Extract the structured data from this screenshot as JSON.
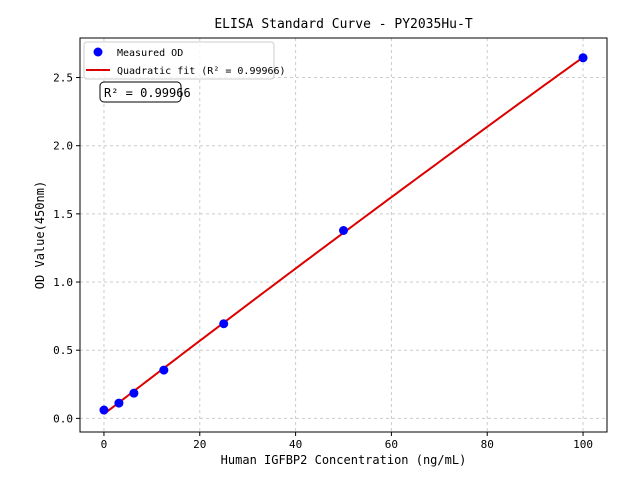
{
  "chart_data": {
    "type": "scatter",
    "title": "ELISA Standard Curve - PY2035Hu-T",
    "xlabel": "Human IGFBP2 Concentration (ng/mL)",
    "ylabel": "OD Value(450nm)",
    "xlim": [
      -5,
      105
    ],
    "ylim": [
      -0.1,
      2.79
    ],
    "xticks": [
      0,
      20,
      40,
      60,
      80,
      100
    ],
    "yticks": [
      0.0,
      0.5,
      1.0,
      1.5,
      2.0,
      2.5
    ],
    "xtick_labels": [
      "0",
      "20",
      "40",
      "60",
      "80",
      "100"
    ],
    "ytick_labels": [
      "0.0",
      "0.5",
      "1.0",
      "1.5",
      "2.0",
      "2.5"
    ],
    "grid": true,
    "legend_placement": "top-left",
    "series": [
      {
        "name": "Measured OD",
        "kind": "points",
        "color": "#0000ff",
        "x": [
          0,
          3.125,
          6.25,
          12.5,
          25,
          50,
          100
        ],
        "y": [
          0.061,
          0.112,
          0.185,
          0.354,
          0.694,
          1.378,
          2.645
        ]
      },
      {
        "name": "Quadratic fit (R² = 0.99966)",
        "kind": "quadratic-fit",
        "color": "#dd0000"
      }
    ],
    "annotation": "R² = 0.99966"
  }
}
